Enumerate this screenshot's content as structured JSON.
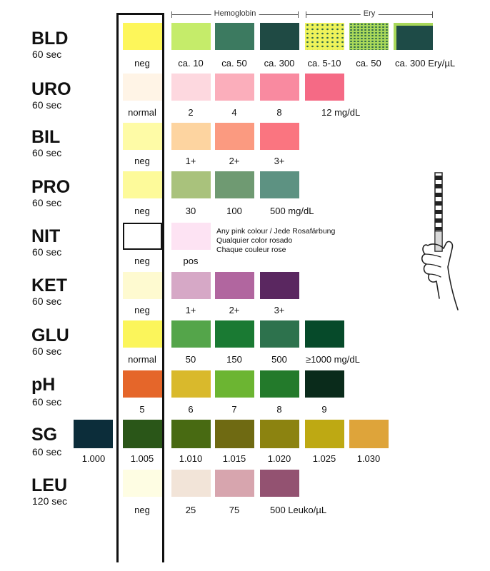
{
  "headers": {
    "hemoglobin": "Hemoglobin",
    "ery": "Ery"
  },
  "rows": {
    "bld": {
      "name": "BLD",
      "time": "60 sec",
      "neg": "neg",
      "h1": "ca. 10",
      "h2": "ca. 50",
      "h3": "ca. 300",
      "e1": "ca. 5-10",
      "e2": "ca. 50",
      "e3": "ca. 300 Ery/µL"
    },
    "uro": {
      "name": "URO",
      "time": "60 sec",
      "v0": "normal",
      "v1": "2",
      "v2": "4",
      "v3": "8",
      "v4": "12 mg/dL"
    },
    "bil": {
      "name": "BIL",
      "time": "60 sec",
      "v0": "neg",
      "v1": "1+",
      "v2": "2+",
      "v3": "3+"
    },
    "pro": {
      "name": "PRO",
      "time": "60 sec",
      "v0": "neg",
      "v1": "30",
      "v2": "100",
      "v3": "500 mg/dL"
    },
    "nit": {
      "name": "NIT",
      "time": "60 sec",
      "v0": "neg",
      "v1": "pos",
      "note1": "Any pink colour / Jede Rosafärbung",
      "note2": "Qualquier color rosado",
      "note3": "Chaque couleur rose"
    },
    "ket": {
      "name": "KET",
      "time": "60 sec",
      "v0": "neg",
      "v1": "1+",
      "v2": "2+",
      "v3": "3+"
    },
    "glu": {
      "name": "GLU",
      "time": "60 sec",
      "v0": "normal",
      "v1": "50",
      "v2": "150",
      "v3": "500",
      "v4": "≥1000 mg/dL"
    },
    "ph": {
      "name": "pH",
      "time": "60 sec",
      "v0": "5",
      "v1": "6",
      "v2": "7",
      "v3": "8",
      "v4": "9"
    },
    "sg": {
      "name": "SG",
      "time": "60 sec",
      "vm": "1.000",
      "v0": "1.005",
      "v1": "1.010",
      "v2": "1.015",
      "v3": "1.020",
      "v4": "1.025",
      "v5": "1.030"
    },
    "leu": {
      "name": "LEU",
      "time": "120 sec",
      "v0": "neg",
      "v1": "25",
      "v2": "75",
      "v3": "500 Leuko/µL"
    }
  },
  "colors": {
    "bld": [
      "#fdf65a",
      "#c5ec6a",
      "#3c7a60",
      "#1f4a44",
      "#eef25a",
      "#a9d85a",
      "#1e4b47"
    ],
    "uro": [
      "#fff4e6",
      "#fdd8df",
      "#fbaebb",
      "#f98aa0",
      "#f56a85"
    ],
    "bil": [
      "#fefba6",
      "#fdd4a0",
      "#fb9a80",
      "#fa7580"
    ],
    "pro": [
      "#fdfa9a",
      "#a9c27c",
      "#6f9a72",
      "#5d9282"
    ],
    "nit": [
      "#ffffff",
      "#fde3f3"
    ],
    "ket": [
      "#fefad0",
      "#d6a8c6",
      "#b1669f",
      "#5a2760"
    ],
    "glu": [
      "#fbf55b",
      "#54a54a",
      "#1a7a33",
      "#2d724d",
      "#064a2a"
    ],
    "ph": [
      "#e5662a",
      "#d9b92c",
      "#6cb532",
      "#237a2b",
      "#0a2b1b"
    ],
    "sg": [
      "#0c2d3a",
      "#2a5618",
      "#486a12",
      "#6f6a12",
      "#8c8310",
      "#bea913",
      "#dea43a"
    ],
    "leu": [
      "#fefde3",
      "#f2e4d8",
      "#d7a5ae",
      "#935271"
    ]
  }
}
